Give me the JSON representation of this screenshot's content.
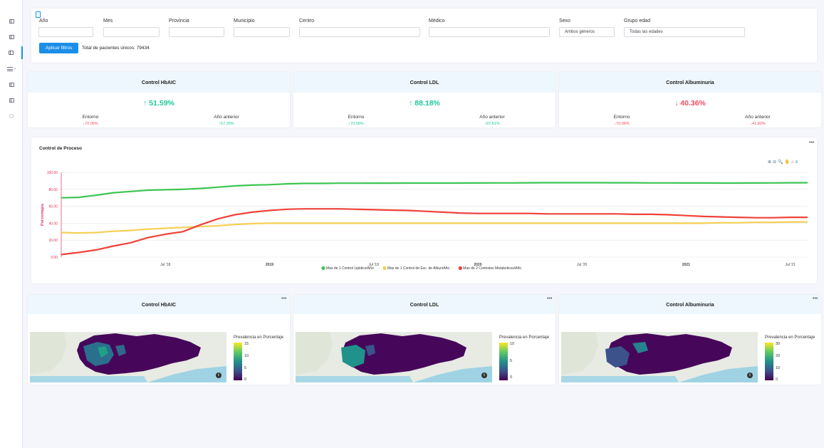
{
  "sidebar": {
    "items": [
      {
        "icon": "panel-icon"
      },
      {
        "icon": "panel-icon"
      },
      {
        "icon": "panel-icon",
        "active": true
      },
      {
        "icon": "menu-icon",
        "arrow": "›"
      },
      {
        "icon": "panel-icon"
      },
      {
        "icon": "panel-icon"
      },
      {
        "icon": "circle-icon"
      }
    ]
  },
  "filters": {
    "collapse_glyph": "‹",
    "fields": [
      {
        "label": "Año",
        "value": ""
      },
      {
        "label": "Mes",
        "value": ""
      },
      {
        "label": "Provincia",
        "value": ""
      },
      {
        "label": "Municipio",
        "value": ""
      },
      {
        "label": "Centro",
        "value": ""
      },
      {
        "label": "Médico",
        "value": ""
      },
      {
        "label": "Sexo",
        "value": "Ambos géneros"
      },
      {
        "label": "Grupo edad",
        "value": "Todas las edades"
      }
    ],
    "apply_label": "Aplicar filtros",
    "total_text": "Total de pacientes únicos: 79434"
  },
  "kpis": [
    {
      "title": "Control HbAIC",
      "value": "↑ 51.59%",
      "value_color": "green",
      "entorno_label": "Entorno",
      "entorno_value": "↓70.06%",
      "entorno_color": "red",
      "prev_label": "Año anterior",
      "prev_value": "↑57.25%",
      "prev_color": "green"
    },
    {
      "title": "Control LDL",
      "value": "↑ 88.18%",
      "value_color": "green",
      "entorno_label": "Entorno",
      "entorno_value": "↑70.06%",
      "entorno_color": "green",
      "prev_label": "Año anterior",
      "prev_value": "↑87.61%",
      "prev_color": "green"
    },
    {
      "title": "Control Albuminuria",
      "value": "↓ 40.36%",
      "value_color": "red",
      "entorno_label": "Entorno",
      "entorno_value": "↓70.06%",
      "entorno_color": "red",
      "prev_label": "Año anterior",
      "prev_value": "↓41.80%",
      "prev_color": "red"
    }
  ],
  "chart_panel": {
    "title": "Control de Proceso",
    "menu_glyph": "•••",
    "toolbar": [
      "⊕",
      "⊖",
      "🔍",
      "✋",
      "⌂",
      "≡"
    ]
  },
  "chart_data": {
    "type": "line",
    "title": "Control de Proceso",
    "ylabel": "Porcentajes",
    "ylim": [
      0,
      100
    ],
    "y_ticks": [
      "100.00",
      "80.00",
      "60.00",
      "40.00",
      "20.00",
      "0.00"
    ],
    "x_tick_labels": [
      "Jul '18",
      "2019",
      "Jul '19",
      "2020",
      "Jul '20",
      "2021",
      "Jul '21"
    ],
    "x_tick_bold": [
      false,
      true,
      false,
      true,
      false,
      true,
      false
    ],
    "x": [
      "2018-01",
      "2018-02",
      "2018-03",
      "2018-04",
      "2018-05",
      "2018-06",
      "2018-07",
      "2018-08",
      "2018-09",
      "2018-10",
      "2018-11",
      "2018-12",
      "2019-01",
      "2019-02",
      "2019-03",
      "2019-04",
      "2019-05",
      "2019-06",
      "2019-07",
      "2019-08",
      "2019-09",
      "2019-10",
      "2019-11",
      "2019-12",
      "2020-01",
      "2020-02",
      "2020-03",
      "2020-04",
      "2020-05",
      "2020-06",
      "2020-07",
      "2020-08",
      "2020-09",
      "2020-10",
      "2020-11",
      "2020-12",
      "2021-01",
      "2021-02",
      "2021-03",
      "2021-04",
      "2021-05",
      "2021-06",
      "2021-07",
      "2021-08"
    ],
    "series": [
      {
        "name": "Mas de 1 Control Lipidico/Año",
        "color": "#3cc553",
        "values": [
          70,
          70.5,
          73,
          76,
          77.5,
          79,
          79.5,
          80,
          81,
          82.5,
          84,
          85,
          85.5,
          86.5,
          87,
          87,
          87.2,
          87.2,
          87.3,
          87.3,
          87.4,
          87.4,
          87.4,
          87.4,
          87.5,
          87.6,
          87.6,
          87.7,
          87.8,
          87.8,
          87.8,
          87.8,
          87.7,
          87.7,
          87.6,
          87.6,
          87.5,
          87.5,
          87.4,
          87.4,
          87.5,
          87.6,
          87.7,
          87.8
        ]
      },
      {
        "name": "Mas de 1 Control de Exc. de Albun/Año",
        "color": "#f6cf55",
        "values": [
          29,
          28.5,
          29,
          30.5,
          31.5,
          33,
          34,
          35,
          36,
          37,
          38.5,
          39.5,
          40,
          40,
          40,
          40,
          40,
          40,
          40,
          40,
          40,
          40,
          40,
          40,
          40,
          40,
          40,
          40,
          40,
          40,
          40,
          40,
          40,
          40,
          40,
          40,
          40,
          40,
          40.5,
          40.5,
          41,
          41,
          41.5,
          41.5
        ]
      },
      {
        "name": "Mas de 2 Controles Metabolicos/Año",
        "color": "#ef4238",
        "values": [
          3,
          5.5,
          8.5,
          13,
          17,
          23,
          27,
          30,
          38,
          45,
          50,
          53,
          55,
          56.5,
          57,
          57,
          57,
          56.5,
          56,
          55.5,
          55,
          54,
          53,
          52,
          51.5,
          51.5,
          51.5,
          51.5,
          51,
          51,
          51,
          51,
          51,
          50.5,
          50.5,
          50,
          49,
          48,
          47.5,
          47,
          46.5,
          46.5,
          47,
          47
        ]
      }
    ],
    "legend_placement": "bottom",
    "grid": true
  },
  "maps": [
    {
      "title": "Control HbAIC",
      "menu_glyph": "•••",
      "legend_title": "Prevalencia en Porcentaje",
      "legend_ticks": [
        "15",
        "10",
        "5",
        "0"
      ],
      "info_glyph": "i"
    },
    {
      "title": "Control LDL",
      "menu_glyph": "•••",
      "legend_title": "Prevalencia en Porcentaje",
      "legend_ticks": [
        "10",
        "5",
        "0"
      ],
      "info_glyph": "i"
    },
    {
      "title": "Control Albuminuria",
      "menu_glyph": "•••",
      "legend_title": "Prevalencia en Porcentaje",
      "legend_ticks": [
        "30",
        "20",
        "10",
        "0"
      ],
      "info_glyph": "i"
    }
  ]
}
